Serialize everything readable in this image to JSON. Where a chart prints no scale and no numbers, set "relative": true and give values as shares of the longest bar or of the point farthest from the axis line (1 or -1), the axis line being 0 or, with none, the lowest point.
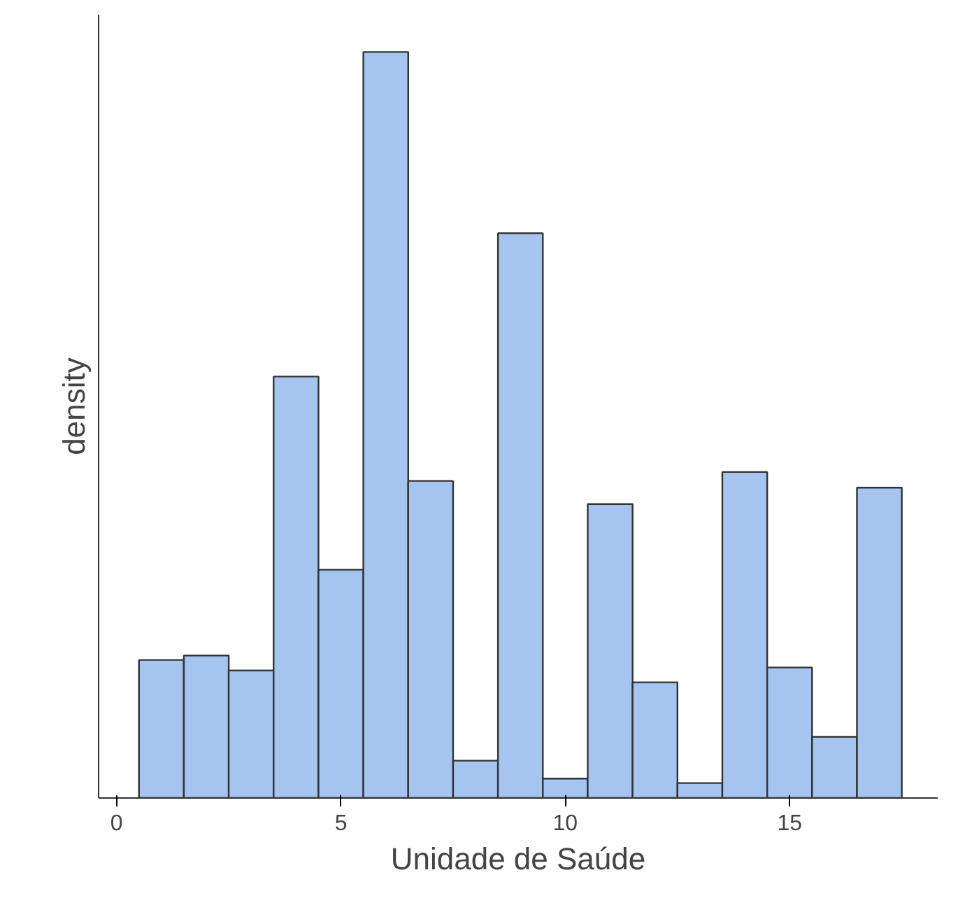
{
  "chart_data": {
    "type": "bar",
    "relative": true,
    "xlabel": "Unidade de Saúde",
    "ylabel": "density",
    "x": [
      1,
      2,
      3,
      4,
      5,
      6,
      7,
      8,
      9,
      10,
      11,
      12,
      13,
      14,
      15,
      16,
      17
    ],
    "values": [
      0.185,
      0.191,
      0.171,
      0.565,
      0.306,
      1,
      0.425,
      0.05,
      0.757,
      0.026,
      0.394,
      0.155,
      0.02,
      0.437,
      0.175,
      0.082,
      0.416
    ],
    "color": "#a6c4f0",
    "xlim": [
      -0.4,
      18.3
    ],
    "xticks": [
      0,
      5,
      10,
      15
    ],
    "grid": false
  }
}
